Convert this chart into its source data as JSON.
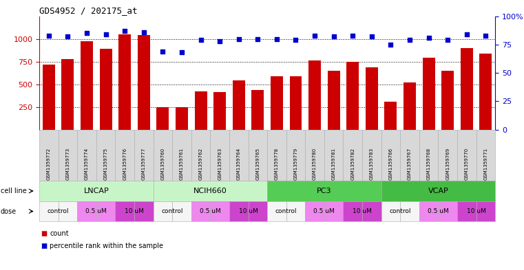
{
  "title": "GDS4952 / 202175_at",
  "samples": [
    "GSM1359772",
    "GSM1359773",
    "GSM1359774",
    "GSM1359775",
    "GSM1359776",
    "GSM1359777",
    "GSM1359760",
    "GSM1359761",
    "GSM1359762",
    "GSM1359763",
    "GSM1359764",
    "GSM1359765",
    "GSM1359778",
    "GSM1359779",
    "GSM1359780",
    "GSM1359781",
    "GSM1359782",
    "GSM1359783",
    "GSM1359766",
    "GSM1359767",
    "GSM1359768",
    "GSM1359769",
    "GSM1359770",
    "GSM1359771"
  ],
  "counts": [
    720,
    775,
    975,
    890,
    1050,
    1040,
    250,
    250,
    420,
    415,
    545,
    440,
    590,
    585,
    760,
    650,
    750,
    690,
    310,
    520,
    790,
    645,
    895,
    840
  ],
  "percentile_ranks": [
    83,
    82,
    85,
    84,
    87,
    86,
    69,
    68,
    79,
    78,
    80,
    80,
    80,
    79,
    83,
    82,
    83,
    82,
    75,
    79,
    81,
    79,
    84,
    83
  ],
  "cell_lines": [
    "LNCAP",
    "LNCAP",
    "LNCAP",
    "LNCAP",
    "LNCAP",
    "LNCAP",
    "NCIH660",
    "NCIH660",
    "NCIH660",
    "NCIH660",
    "NCIH660",
    "NCIH660",
    "PC3",
    "PC3",
    "PC3",
    "PC3",
    "PC3",
    "PC3",
    "VCAP",
    "VCAP",
    "VCAP",
    "VCAP",
    "VCAP",
    "VCAP"
  ],
  "doses": [
    "control",
    "control",
    "0.5 uM",
    "0.5 uM",
    "10 uM",
    "10 uM",
    "control",
    "control",
    "0.5 uM",
    "0.5 uM",
    "10 uM",
    "10 uM",
    "control",
    "control",
    "0.5 uM",
    "0.5 uM",
    "10 uM",
    "10 uM",
    "control",
    "control",
    "0.5 uM",
    "0.5 uM",
    "10 uM",
    "10 uM"
  ],
  "bar_color": "#cc0000",
  "dot_color": "#0000cc",
  "ylim_left": [
    0,
    1250
  ],
  "ylim_right": [
    0,
    100
  ],
  "yticks_left": [
    250,
    500,
    750,
    1000
  ],
  "yticks_right": [
    0,
    25,
    50,
    75,
    100
  ],
  "cell_line_colors": {
    "LNCAP": "#c8f5c8",
    "NCIH660": "#c8f5c8",
    "PC3": "#55cc55",
    "VCAP": "#44bb44"
  },
  "dose_colors": {
    "control": "#f5f5f5",
    "0.5 uM": "#ee88ee",
    "10 uM": "#cc44cc"
  },
  "cell_line_groups": [
    {
      "name": "LNCAP",
      "start": 0,
      "end": 5
    },
    {
      "name": "NCIH660",
      "start": 6,
      "end": 11
    },
    {
      "name": "PC3",
      "start": 12,
      "end": 17
    },
    {
      "name": "VCAP",
      "start": 18,
      "end": 23
    }
  ],
  "bg_color": "#ffffff",
  "grid_color": "#555555",
  "left_axis_color": "#cc0000",
  "right_axis_color": "#0000cc"
}
